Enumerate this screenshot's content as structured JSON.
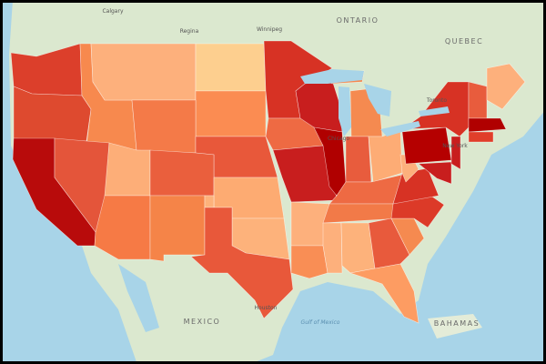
{
  "basemap_labels": [
    "Calgary",
    "Regina",
    "Winnipeg",
    "ONTARIO",
    "QUEBEC",
    "Toronto",
    "Chicago",
    "New York",
    "Houston",
    "MEXICO",
    "Gulf of Mexico",
    "BAHAMAS"
  ],
  "state_fills": [
    "#dc3f2b",
    "#de4a2f",
    "#b80b0b",
    "#f7894e",
    "#fdb07c",
    "#fdcf8f",
    "#fb8c52",
    "#f47a48",
    "#e8583a",
    "#e4553a",
    "#fdae78",
    "#ea5f3d",
    "#f67a45",
    "#f58448",
    "#fdab72",
    "#fdb27b",
    "#e8583a",
    "#d73224",
    "#ee6a43",
    "#c81e1e",
    "#fdb07c",
    "#f98e55",
    "#c81e1e",
    "#b00000",
    "#f58a50",
    "#f58a50",
    "#e85c3d",
    "#fdac75",
    "#ee6a43",
    "#f27a48",
    "#fdb07c",
    "#fdb27b",
    "#e85a3c",
    "#fd9c62",
    "#f58a50",
    "#dc3a28",
    "#d73224",
    "#fdb07c",
    "#b50000",
    "#d73224",
    "#c81e1e",
    "#c81e1e",
    "#e85c3d",
    "#fdb07c",
    "#b00000",
    "#e03e2a"
  ]
}
